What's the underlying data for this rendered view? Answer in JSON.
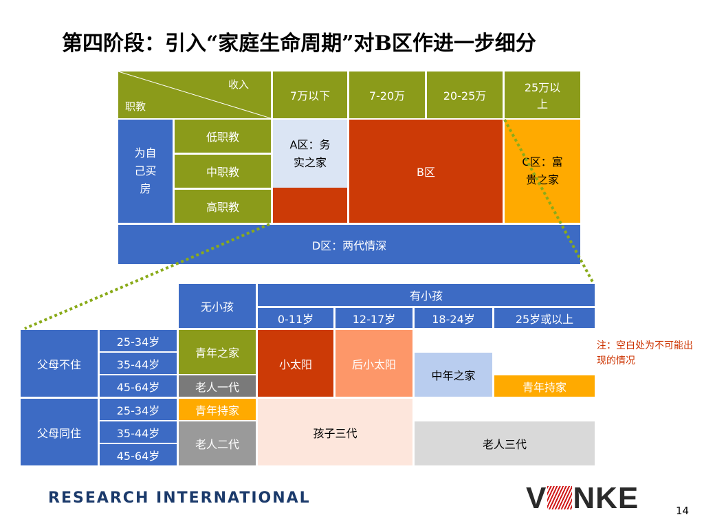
{
  "title": "第四阶段：引入“家庭生命周期”对B区作进一步细分",
  "top_table": {
    "corner_top": "收入",
    "corner_bottom": "职教",
    "income_cols": [
      "7万以下",
      "7-20万",
      "20-25万",
      "25万以\n上"
    ],
    "row_group": "为自\n己买\n房",
    "edu_rows": [
      "低职教",
      "中职教",
      "高职教"
    ],
    "zone_a": "A区：务\n实之家",
    "zone_b": "B区",
    "zone_c": "C区：富\n贵之家",
    "zone_d": "D区：两代情深"
  },
  "bottom_table": {
    "no_child": "无小孩",
    "has_child": "有小孩",
    "age_cols": [
      "0-11岁",
      "12-17岁",
      "18-24岁",
      "25岁或以上"
    ],
    "groups": [
      {
        "label": "父母不住",
        "ages": [
          "25-34岁",
          "35-44岁",
          "45-64岁"
        ]
      },
      {
        "label": "父母同住",
        "ages": [
          "25-34岁",
          "35-44岁",
          "45-64岁"
        ]
      }
    ],
    "segments": {
      "young_home": "青年之家",
      "elder_gen1": "老人一代",
      "little_sun": "小太阳",
      "post_little_sun": "后小太阳",
      "midlife_home": "中年之家",
      "young_keep_1": "青年持家",
      "young_keep_2": "青年持家",
      "elder_gen2": "老人二代",
      "child_three_gen": "孩子三代",
      "elder_three_gen": "老人三代"
    }
  },
  "note": "注：空白处为不可能出现的情况",
  "footer": {
    "company": "RESEARCH INTERNATIONAL",
    "logo_left": "V",
    "logo_right": "NKE",
    "page_number": "14"
  },
  "colors": {
    "olive": "#8b9b1a",
    "blue": "#3d6bc4",
    "rust": "#cc3a06",
    "orange": "#ffaa00",
    "peach": "#fd9769",
    "note_red": "#cc3300"
  }
}
